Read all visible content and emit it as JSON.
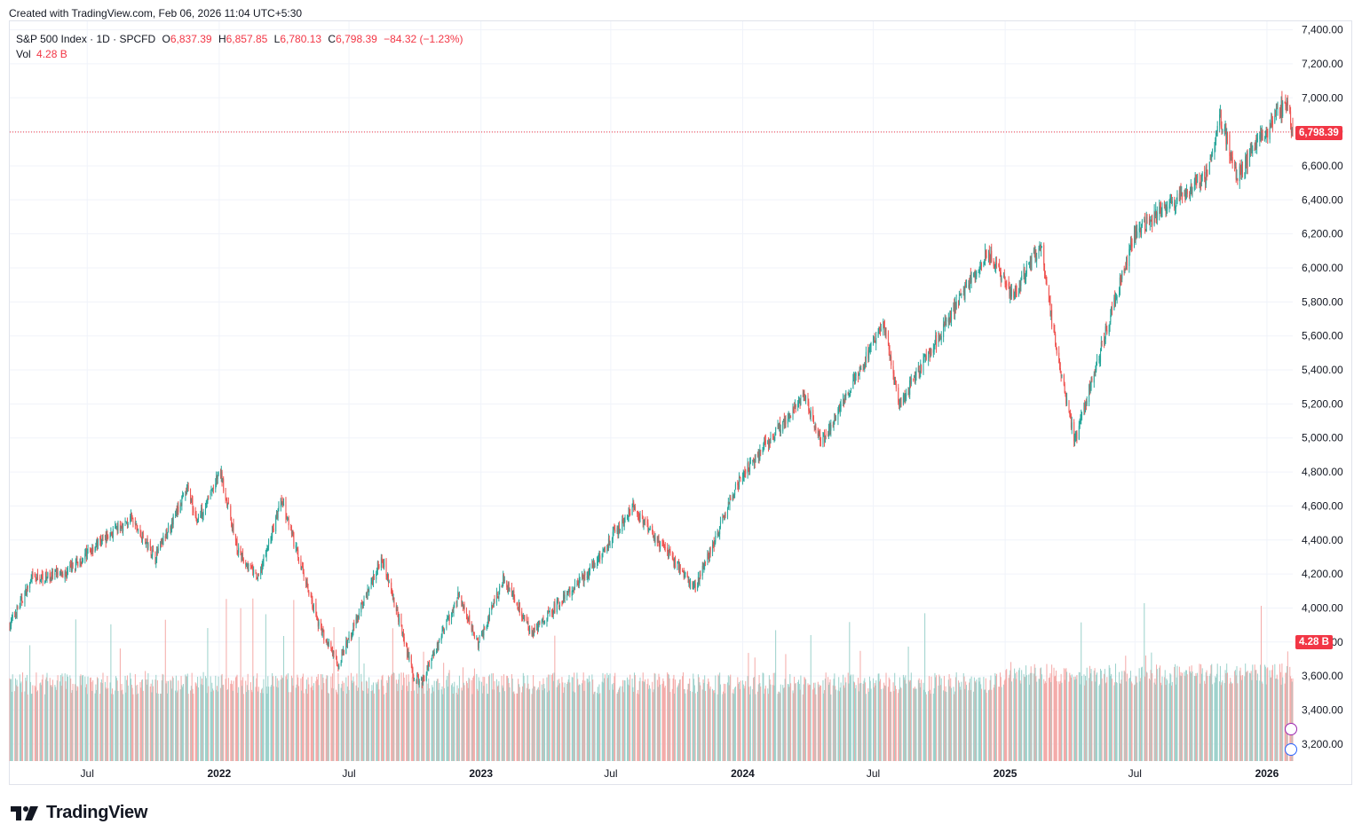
{
  "header": {
    "created_text": "Created with TradingView.com, Feb 06, 2026 11:04 UTC+5:30"
  },
  "legend": {
    "symbol": "S&P 500 Index · 1D · SPCFD",
    "o_label": "O",
    "o_value": "6,837.39",
    "h_label": "H",
    "h_value": "6,857.85",
    "l_label": "L",
    "l_value": "6,780.13",
    "c_label": "C",
    "c_value": "6,798.39",
    "change": "−84.32 (−1.23%)",
    "vol_label": "Vol",
    "vol_value": "4.28 B"
  },
  "tags": {
    "last_price": "6,798.39",
    "last_volume": "4.28 B"
  },
  "branding": {
    "name": "TradingView",
    "logo_icon": "tradingview-logo-icon"
  },
  "colors": {
    "up": "#26a69a",
    "down": "#ef5350",
    "up_vol": "#9bd1cb",
    "down_vol": "#f4a9a7",
    "grid": "#f0f3fa",
    "axis_text": "#131722",
    "last_price_line": "#f23645"
  },
  "chart_data": {
    "type": "candlestick",
    "ylim": [
      3100,
      7450
    ],
    "y_ticks": [
      3200,
      3400,
      3600,
      3800,
      4000,
      4200,
      4400,
      4600,
      4800,
      5000,
      5200,
      5400,
      5600,
      5800,
      6000,
      6200,
      6400,
      6600,
      6800,
      7000,
      7200,
      7400
    ],
    "y_tick_labels": [
      "3,200.00",
      "3,400.00",
      "3,600.00",
      "3,800.00",
      "4,000.00",
      "4,200.00",
      "4,400.00",
      "4,600.00",
      "4,800.00",
      "5,000.00",
      "5,200.00",
      "5,400.00",
      "5,600.00",
      "5,800.00",
      "6,000.00",
      "6,200.00",
      "6,400.00",
      "6,600.00",
      "6,800.00",
      "7,000.00",
      "7,200.00",
      "7,400.00"
    ],
    "x_range": [
      "2021-03-15",
      "2026-02-06"
    ],
    "x_ticks": [
      {
        "date": "2021-07-01",
        "label": "Jul"
      },
      {
        "date": "2022-01-01",
        "label": "2022"
      },
      {
        "date": "2022-07-01",
        "label": "Jul"
      },
      {
        "date": "2023-01-01",
        "label": "2023"
      },
      {
        "date": "2023-07-01",
        "label": "Jul"
      },
      {
        "date": "2024-01-01",
        "label": "2024"
      },
      {
        "date": "2024-07-01",
        "label": "Jul"
      },
      {
        "date": "2025-01-01",
        "label": "2025"
      },
      {
        "date": "2025-07-01",
        "label": "Jul"
      },
      {
        "date": "2026-01-01",
        "label": "2026"
      }
    ],
    "close_path": [
      {
        "date": "2021-03-15",
        "close": 3900
      },
      {
        "date": "2021-04-15",
        "close": 4170
      },
      {
        "date": "2021-06-01",
        "close": 4200
      },
      {
        "date": "2021-07-15",
        "close": 4380
      },
      {
        "date": "2021-08-31",
        "close": 4520
      },
      {
        "date": "2021-10-04",
        "close": 4300
      },
      {
        "date": "2021-11-18",
        "close": 4700
      },
      {
        "date": "2021-12-01",
        "close": 4510
      },
      {
        "date": "2022-01-03",
        "close": 4796
      },
      {
        "date": "2022-01-27",
        "close": 4330
      },
      {
        "date": "2022-02-24",
        "close": 4170
      },
      {
        "date": "2022-03-29",
        "close": 4630
      },
      {
        "date": "2022-05-20",
        "close": 3900
      },
      {
        "date": "2022-06-16",
        "close": 3666
      },
      {
        "date": "2022-08-16",
        "close": 4305
      },
      {
        "date": "2022-09-30",
        "close": 3585
      },
      {
        "date": "2022-10-12",
        "close": 3577
      },
      {
        "date": "2022-12-01",
        "close": 4080
      },
      {
        "date": "2022-12-28",
        "close": 3783
      },
      {
        "date": "2023-02-02",
        "close": 4180
      },
      {
        "date": "2023-03-13",
        "close": 3855
      },
      {
        "date": "2023-06-01",
        "close": 4220
      },
      {
        "date": "2023-07-31",
        "close": 4589
      },
      {
        "date": "2023-10-27",
        "close": 4117
      },
      {
        "date": "2023-12-29",
        "close": 4770
      },
      {
        "date": "2024-03-28",
        "close": 5254
      },
      {
        "date": "2024-04-19",
        "close": 4967
      },
      {
        "date": "2024-07-16",
        "close": 5667
      },
      {
        "date": "2024-08-05",
        "close": 5186
      },
      {
        "date": "2024-12-06",
        "close": 6090
      },
      {
        "date": "2025-01-13",
        "close": 5836
      },
      {
        "date": "2025-02-19",
        "close": 6144
      },
      {
        "date": "2025-03-13",
        "close": 5521
      },
      {
        "date": "2025-04-08",
        "close": 4982
      },
      {
        "date": "2025-06-30",
        "close": 6205
      },
      {
        "date": "2025-10-10",
        "close": 6552
      },
      {
        "date": "2025-10-28",
        "close": 6890
      },
      {
        "date": "2025-11-20",
        "close": 6538
      },
      {
        "date": "2026-01-27",
        "close": 6978
      },
      {
        "date": "2026-02-06",
        "close": 6798.39
      }
    ],
    "last_bar": {
      "open": 6837.39,
      "high": 6857.85,
      "low": 6780.13,
      "close": 6798.39,
      "volume": "4.28 B"
    }
  }
}
